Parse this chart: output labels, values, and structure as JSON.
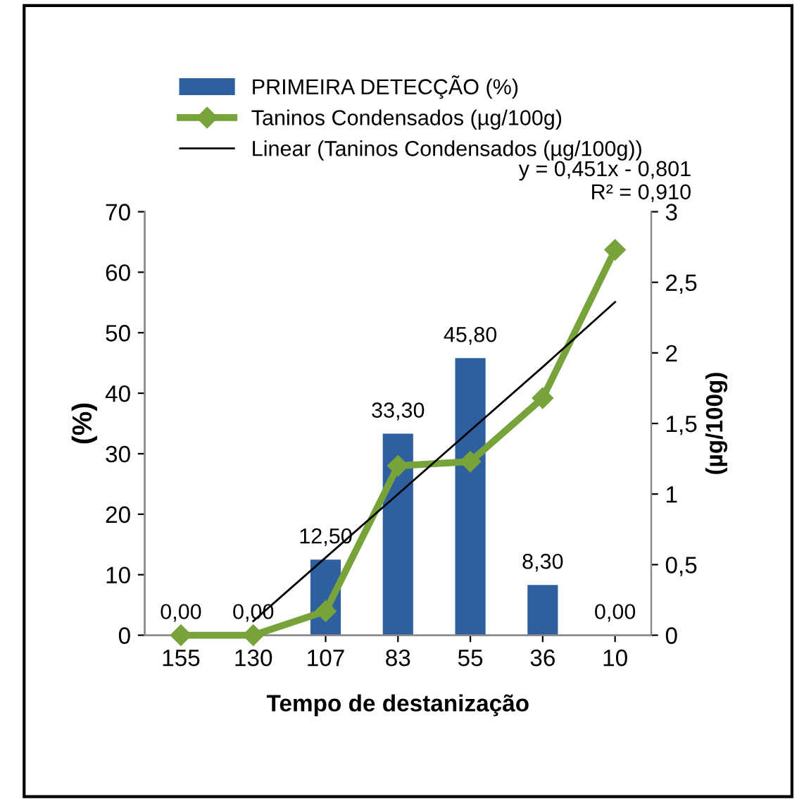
{
  "chart_data": {
    "type": "bar",
    "categories": [
      "155",
      "130",
      "107",
      "83",
      "55",
      "36",
      "10"
    ],
    "xlabel": "Tempo de destanização",
    "ylabel": "(%)",
    "y2label": "(µg/100g)",
    "ylim": [
      0,
      70
    ],
    "yticks": [
      0,
      10,
      20,
      30,
      40,
      50,
      60,
      70
    ],
    "y2lim": [
      0,
      3
    ],
    "y2ticks": [
      0,
      {
        "value": 0.5,
        "label": "0,5"
      },
      1,
      {
        "value": 1.5,
        "label": "1,5"
      },
      2,
      {
        "value": 2.5,
        "label": "2,5"
      },
      3
    ],
    "series": [
      {
        "name": "PRIMEIRA DETECÇÃO (%)",
        "color": "#2e5fa0",
        "values": [
          0,
          0,
          12.5,
          33.3,
          45.8,
          8.3,
          0
        ],
        "value_labels": [
          "0,00",
          "0,00",
          "12,50",
          "33,30",
          "45,80",
          "8,30",
          "0,00"
        ]
      },
      {
        "name": "Taninos Condensados (µg/100g)",
        "type": "line",
        "axis": "y2",
        "color": "#77a33a",
        "marker": "diamond",
        "values": [
          0,
          0,
          0.17,
          1.2,
          1.23,
          1.68,
          2.73
        ]
      },
      {
        "name": "Linear (Taninos Condensados (µg/100g))",
        "type": "line",
        "axis": "y2",
        "color": "#000000",
        "marker": "none",
        "values": [
          null,
          0.1,
          0.55,
          1.0,
          1.45,
          1.9,
          2.36
        ]
      }
    ],
    "legend": "top left",
    "grid": false,
    "annotations": [
      "y = 0,451x - 0,801\nR² = 0,910"
    ]
  }
}
